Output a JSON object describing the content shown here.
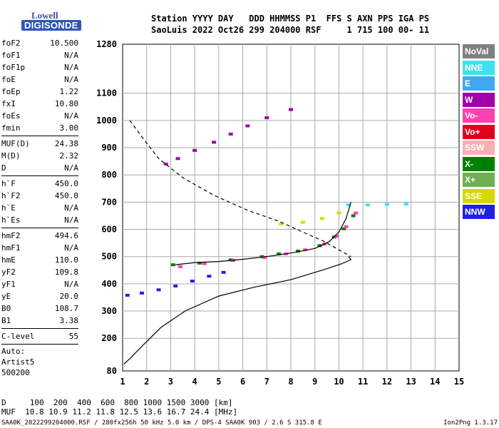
{
  "logo": {
    "line1": "Lowell",
    "line2": "DIGISONDE"
  },
  "header": {
    "line1": "Station YYYY DAY   DDD HHMMSS P1  FFS S AXN PPS IGA PS",
    "line2": "SaoLuis 2022 Oct26 299 204000 RSF     1 715 100 00- 11"
  },
  "params": {
    "group1": [
      {
        "name": "foF2",
        "value": "10.500"
      },
      {
        "name": "foF1",
        "value": "N/A"
      },
      {
        "name": "foF1p",
        "value": "N/A"
      },
      {
        "name": "foE",
        "value": "N/A"
      },
      {
        "name": "foEp",
        "value": "1.22"
      },
      {
        "name": "fxI",
        "value": "10.80"
      },
      {
        "name": "foEs",
        "value": "N/A"
      },
      {
        "name": "fmin",
        "value": "3.00"
      }
    ],
    "group2": [
      {
        "name": "MUF(D)",
        "value": "24.38"
      },
      {
        "name": "M(D)",
        "value": "2.32"
      },
      {
        "name": "D",
        "value": "N/A"
      }
    ],
    "group3": [
      {
        "name": "h`F",
        "value": "450.0"
      },
      {
        "name": "h`F2",
        "value": "450.0"
      },
      {
        "name": "h`E",
        "value": "N/A"
      },
      {
        "name": "h`Es",
        "value": "N/A"
      }
    ],
    "group4": [
      {
        "name": "hmF2",
        "value": "494.6"
      },
      {
        "name": "hmF1",
        "value": "N/A"
      },
      {
        "name": "hmE",
        "value": "110.0"
      },
      {
        "name": "yF2",
        "value": "109.8"
      },
      {
        "name": "yF1",
        "value": "N/A"
      },
      {
        "name": "yE",
        "value": "20.0"
      },
      {
        "name": "B0",
        "value": "108.7"
      },
      {
        "name": "B1",
        "value": "3.38"
      }
    ],
    "clevel": {
      "name": "C-level",
      "value": "55"
    },
    "auto": [
      "Auto:",
      "Artist5",
      "500200"
    ]
  },
  "legend": [
    {
      "label": "NoVal",
      "color": "#808080"
    },
    {
      "label": "NNE",
      "color": "#3fe0f0"
    },
    {
      "label": "E",
      "color": "#3fa8f0"
    },
    {
      "label": "W",
      "color": "#a000a8"
    },
    {
      "label": "Vo-",
      "color": "#ff40b0"
    },
    {
      "label": "Vo+",
      "color": "#e00020"
    },
    {
      "label": "SSW",
      "color": "#f8b0b0"
    },
    {
      "label": "X-",
      "color": "#008000"
    },
    {
      "label": "X+",
      "color": "#70b050"
    },
    {
      "label": "SSE",
      "color": "#d8d800"
    },
    {
      "label": "NNW",
      "color": "#2020e0"
    }
  ],
  "bottom": {
    "line1": "D     100  200  400  600  800 1000 1500 3000 [km]",
    "line2": "MUF  10.8 10.9 11.2 11.8 12.5 13.6 16.7 24.4 [MHz]"
  },
  "footer": {
    "left": "SAA0K_2022299204000.RSF / 280fx256h 50 kHz 5.0 km / DPS-4 SAA0K 903 / 2.6 S 315.8 E",
    "right": "Ion2Png 1.3.17"
  },
  "chart_data": {
    "type": "scatter",
    "x_ticks": [
      1,
      2,
      3,
      4,
      5,
      6,
      7,
      8,
      9,
      10,
      11,
      12,
      13,
      14,
      15
    ],
    "y_ticks": [
      80,
      200,
      300,
      400,
      500,
      600,
      700,
      800,
      900,
      1000,
      1100,
      1280
    ],
    "xlim": [
      1,
      15
    ],
    "ylim": [
      80,
      1280
    ],
    "grid": true,
    "legend_position": "right",
    "series": [
      {
        "name": "X-",
        "color": "#008000",
        "points": [
          [
            3.1,
            470
          ],
          [
            4.2,
            476
          ],
          [
            5.5,
            488
          ],
          [
            6.8,
            500
          ],
          [
            7.5,
            510
          ],
          [
            8.3,
            520
          ],
          [
            9.2,
            540
          ],
          [
            9.8,
            572
          ],
          [
            10.2,
            602
          ],
          [
            10.6,
            650
          ]
        ]
      },
      {
        "name": "Vo-",
        "color": "#ff40b0",
        "points": [
          [
            3.4,
            463
          ],
          [
            4.4,
            474
          ],
          [
            5.6,
            486
          ],
          [
            6.9,
            497
          ],
          [
            7.8,
            510
          ],
          [
            8.6,
            525
          ],
          [
            9.4,
            546
          ],
          [
            9.9,
            575
          ],
          [
            10.3,
            610
          ],
          [
            10.7,
            660
          ]
        ]
      },
      {
        "name": "NNW",
        "color": "#2020e0",
        "points": [
          [
            1.2,
            358
          ],
          [
            1.8,
            366
          ],
          [
            2.5,
            378
          ],
          [
            3.2,
            392
          ],
          [
            3.9,
            410
          ],
          [
            4.6,
            428
          ],
          [
            5.2,
            442
          ]
        ]
      },
      {
        "name": "W",
        "color": "#a000a8",
        "points": [
          [
            2.8,
            840
          ],
          [
            3.3,
            860
          ],
          [
            4.0,
            890
          ],
          [
            4.8,
            920
          ],
          [
            5.5,
            950
          ],
          [
            6.2,
            980
          ],
          [
            7.0,
            1010
          ],
          [
            8.0,
            1040
          ]
        ]
      },
      {
        "name": "NNE",
        "color": "#3fe0f0",
        "points": [
          [
            10.4,
            690
          ],
          [
            11.2,
            690
          ],
          [
            12.0,
            692
          ],
          [
            12.8,
            693
          ]
        ]
      },
      {
        "name": "SSE",
        "color": "#d8d800",
        "points": [
          [
            7.6,
            620
          ],
          [
            8.5,
            626
          ],
          [
            9.3,
            640
          ],
          [
            10.0,
            660
          ]
        ]
      }
    ],
    "traces": [
      {
        "name": "virtual-height",
        "style": "solid",
        "points": [
          [
            3.2,
            470
          ],
          [
            4.0,
            478
          ],
          [
            5.0,
            482
          ],
          [
            6.0,
            490
          ],
          [
            7.0,
            500
          ],
          [
            8.0,
            513
          ],
          [
            9.0,
            530
          ],
          [
            9.6,
            555
          ],
          [
            10.0,
            590
          ],
          [
            10.3,
            640
          ],
          [
            10.5,
            700
          ]
        ]
      },
      {
        "name": "true-height-profile",
        "style": "solid",
        "points": [
          [
            1.05,
            105
          ],
          [
            1.3,
            125
          ],
          [
            1.8,
            170
          ],
          [
            2.6,
            240
          ],
          [
            3.6,
            300
          ],
          [
            5.0,
            355
          ],
          [
            6.5,
            388
          ],
          [
            8.0,
            415
          ],
          [
            9.3,
            450
          ],
          [
            10.1,
            473
          ],
          [
            10.5,
            489
          ],
          [
            10.4,
            500
          ]
        ]
      },
      {
        "name": "model-profile",
        "style": "dashed",
        "points": [
          [
            1.3,
            1000
          ],
          [
            1.8,
            940
          ],
          [
            2.5,
            860
          ],
          [
            3.5,
            790
          ],
          [
            4.8,
            725
          ],
          [
            6.2,
            670
          ],
          [
            7.5,
            630
          ],
          [
            8.5,
            590
          ],
          [
            9.4,
            555
          ],
          [
            10.0,
            525
          ],
          [
            10.5,
            500
          ]
        ]
      }
    ]
  }
}
